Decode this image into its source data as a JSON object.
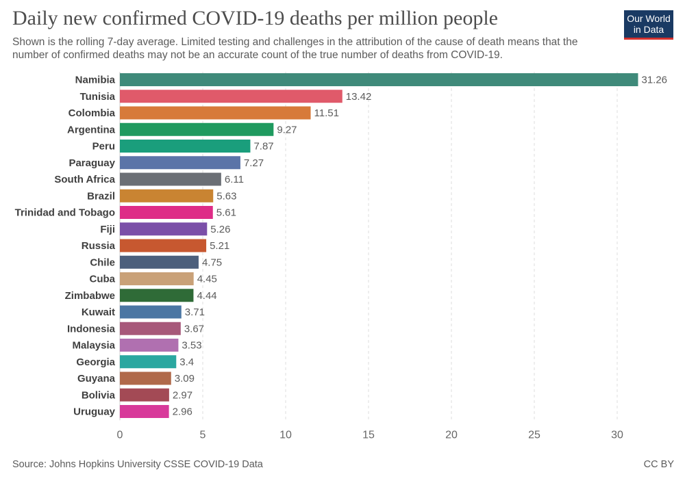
{
  "title": "Daily new confirmed COVID-19 deaths per million people",
  "subtitle": "Shown is the rolling 7-day average. Limited testing and challenges in the attribution of the cause of death means that the number of confirmed deaths may not be an accurate count of the true number of deaths from COVID-19.",
  "logo": {
    "line1": "Our World",
    "line2": "in Data",
    "bg_color": "#1a3a63",
    "accent_color": "#d6322e"
  },
  "footer": {
    "source": "Source: Johns Hopkins University CSSE COVID-19 Data",
    "license": "CC BY"
  },
  "chart_data": {
    "type": "bar",
    "orientation": "horizontal",
    "title": "Daily new confirmed COVID-19 deaths per million people",
    "xlabel": "",
    "ylabel": "",
    "xlim": [
      0,
      32
    ],
    "xticks": [
      0,
      5,
      10,
      15,
      20,
      25,
      30
    ],
    "grid": "vertical-dashed",
    "categories": [
      "Namibia",
      "Tunisia",
      "Colombia",
      "Argentina",
      "Peru",
      "Paraguay",
      "South Africa",
      "Brazil",
      "Trinidad and Tobago",
      "Fiji",
      "Russia",
      "Chile",
      "Cuba",
      "Zimbabwe",
      "Kuwait",
      "Indonesia",
      "Malaysia",
      "Georgia",
      "Guyana",
      "Bolivia",
      "Uruguay"
    ],
    "values": [
      31.26,
      13.42,
      11.51,
      9.27,
      7.87,
      7.27,
      6.11,
      5.63,
      5.61,
      5.26,
      5.21,
      4.75,
      4.45,
      4.44,
      3.71,
      3.67,
      3.53,
      3.4,
      3.09,
      2.97,
      2.96
    ],
    "value_labels": [
      "31.26",
      "13.42",
      "11.51",
      "9.27",
      "7.87",
      "7.27",
      "6.11",
      "5.63",
      "5.61",
      "5.26",
      "5.21",
      "4.75",
      "4.45",
      "4.44",
      "3.71",
      "3.67",
      "3.53",
      "3.4",
      "3.09",
      "2.97",
      "2.96"
    ],
    "colors": [
      "#3f8a7a",
      "#e05a6a",
      "#d77a3a",
      "#1f9a5f",
      "#1a9e7c",
      "#5b74a8",
      "#6b6f75",
      "#c98432",
      "#de2c87",
      "#7b4fa8",
      "#c75830",
      "#4c5f7c",
      "#c9a178",
      "#2f6b37",
      "#4b76a3",
      "#a7587a",
      "#b070b0",
      "#2aa7a0",
      "#b0694a",
      "#a34a55",
      "#d8399a"
    ]
  }
}
